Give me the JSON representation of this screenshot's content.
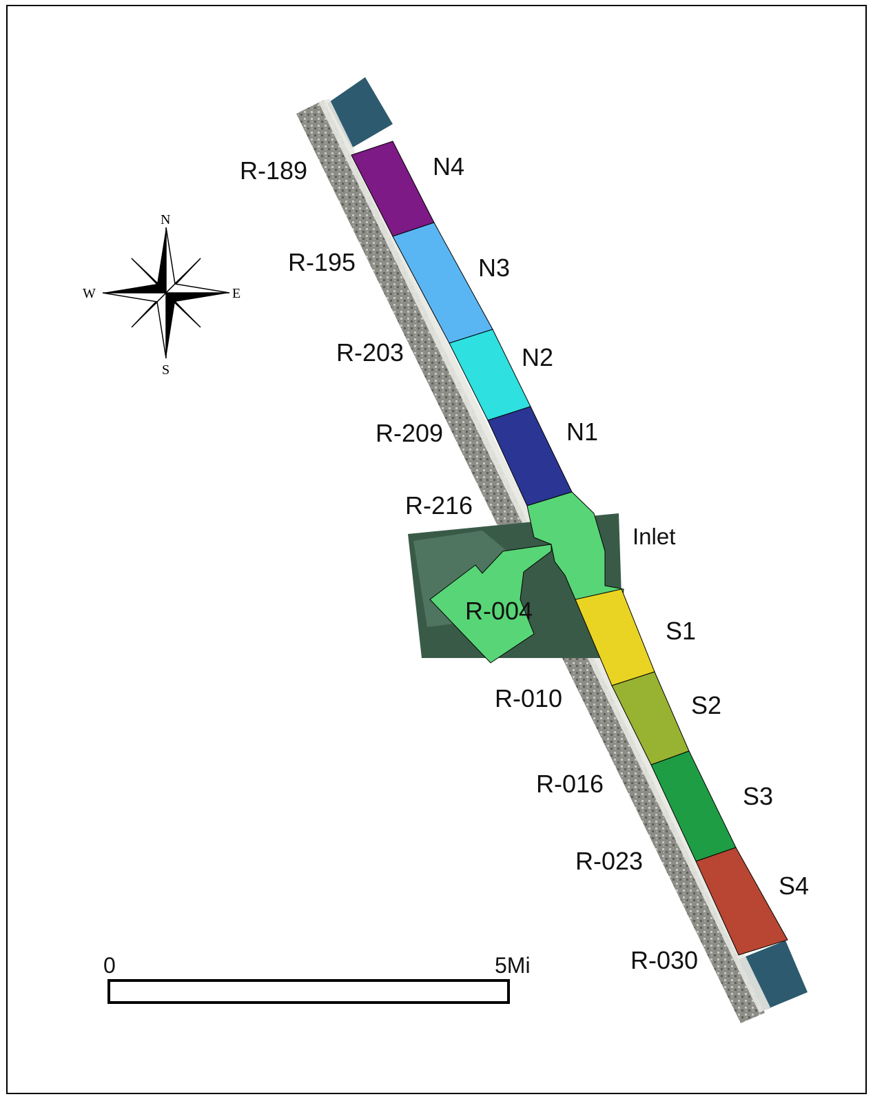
{
  "map": {
    "colors": {
      "N4": "#7d1a85",
      "N3": "#5ab6f3",
      "N2": "#2fe0e0",
      "N1": "#2b3593",
      "Inlet": "#58d576",
      "S1": "#ead423",
      "S2": "#98b332",
      "S3": "#1f9d45",
      "S4": "#b84632",
      "imagery_beach": "#8f8f8a",
      "imagery_water": "#2d5a6e",
      "inlet_imagery": "#3a5a48"
    },
    "segments": [
      {
        "id": "N4",
        "label": "N4",
        "color": "#7d1a85"
      },
      {
        "id": "N3",
        "label": "N3",
        "color": "#5ab6f3"
      },
      {
        "id": "N2",
        "label": "N2",
        "color": "#2fe0e0"
      },
      {
        "id": "N1",
        "label": "N1",
        "color": "#2b3593"
      },
      {
        "id": "Inlet",
        "label": "Inlet",
        "color": "#58d576"
      },
      {
        "id": "S1",
        "label": "S1",
        "color": "#ead423"
      },
      {
        "id": "S2",
        "label": "S2",
        "color": "#98b332"
      },
      {
        "id": "S3",
        "label": "S3",
        "color": "#1f9d45"
      },
      {
        "id": "S4",
        "label": "S4",
        "color": "#b84632"
      }
    ],
    "monuments": [
      "R-189",
      "R-195",
      "R-203",
      "R-209",
      "R-216",
      "R-004",
      "R-010",
      "R-016",
      "R-023",
      "R-030"
    ]
  },
  "compass": {
    "icon": "compass-rose-icon",
    "n": "N",
    "s": "S",
    "e": "E",
    "w": "W"
  },
  "scalebar": {
    "start": "0",
    "end": "5Mi"
  }
}
